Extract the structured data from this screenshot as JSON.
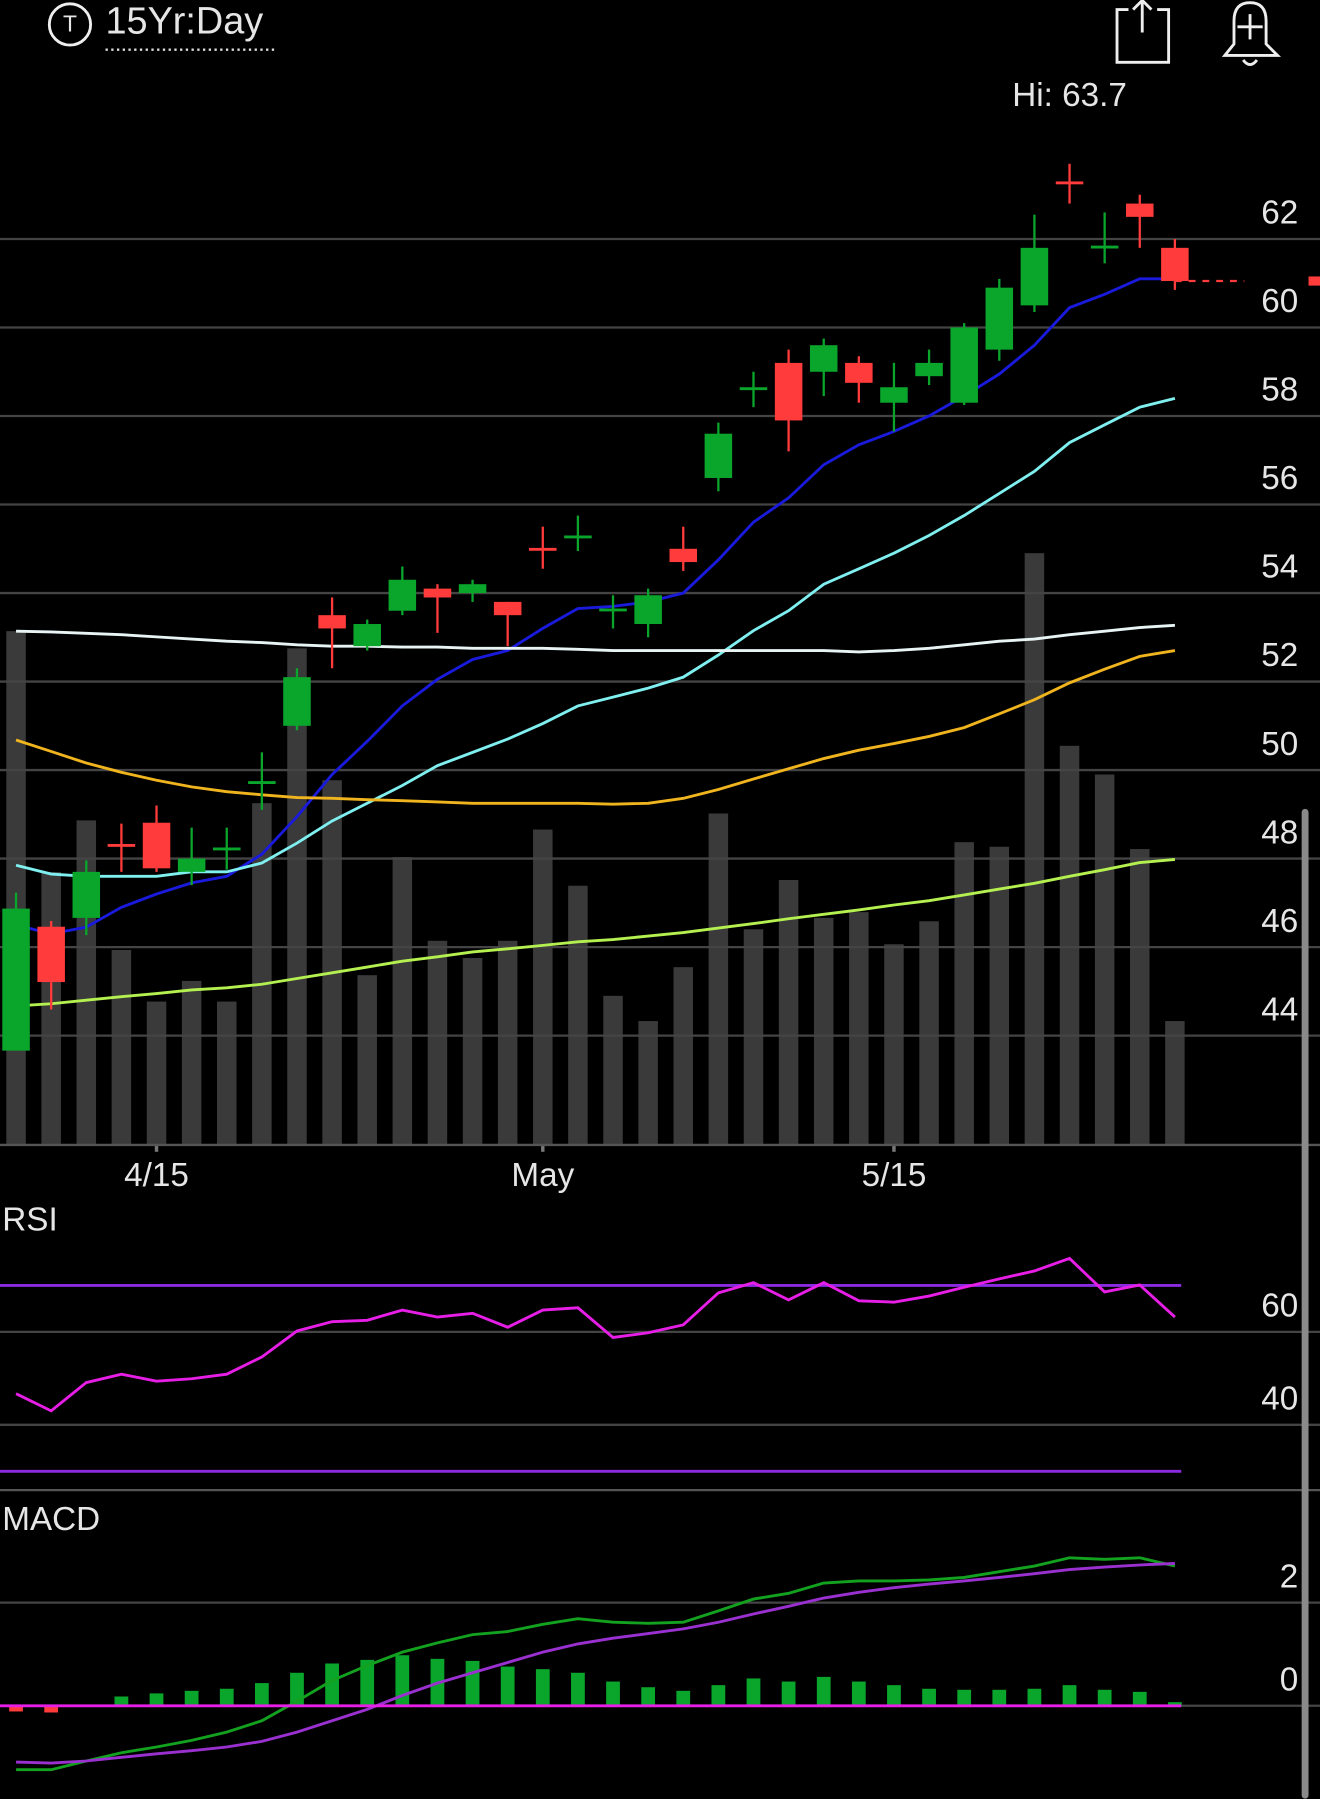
{
  "header": {
    "title": "15Yr:Day"
  },
  "chart_data": [
    {
      "type": "candlestick",
      "categories": [
        null,
        null,
        null,
        null,
        "4/15",
        null,
        null,
        null,
        null,
        null,
        null,
        null,
        null,
        null,
        null,
        "May",
        null,
        null,
        null,
        null,
        null,
        null,
        null,
        null,
        null,
        "5/15",
        null,
        null,
        null,
        null,
        null,
        null,
        null,
        null
      ],
      "open": [
        43.66,
        46.46,
        46.66,
        48.33,
        48.81,
        47.7,
        48.2,
        49.7,
        51.0,
        53.5,
        52.8,
        53.6,
        54.1,
        54.0,
        53.8,
        55.02,
        55.25,
        53.6,
        53.3,
        55.0,
        56.6,
        58.6,
        59.2,
        59.0,
        59.2,
        58.3,
        58.9,
        58.3,
        59.5,
        60.5,
        63.3,
        61.8,
        62.8,
        61.8
      ],
      "high": [
        47.23,
        46.59,
        47.96,
        48.79,
        49.2,
        48.7,
        48.7,
        50.4,
        52.3,
        53.9,
        53.4,
        54.6,
        54.2,
        54.3,
        53.8,
        55.5,
        55.75,
        53.95,
        54.1,
        55.5,
        57.85,
        59.0,
        59.5,
        59.75,
        59.35,
        59.2,
        59.5,
        60.1,
        61.1,
        62.55,
        63.7,
        62.6,
        63.0,
        62.0
      ],
      "low": [
        43.66,
        44.59,
        46.27,
        47.7,
        47.7,
        47.4,
        47.75,
        49.1,
        50.9,
        52.3,
        52.7,
        53.5,
        53.1,
        53.8,
        52.8,
        54.55,
        54.95,
        53.2,
        53.0,
        54.5,
        56.3,
        58.2,
        57.2,
        58.45,
        58.3,
        57.65,
        58.7,
        58.25,
        59.25,
        60.35,
        62.8,
        61.45,
        61.8,
        60.85
      ],
      "close": [
        46.87,
        45.21,
        47.7,
        48.29,
        47.78,
        48.0,
        48.25,
        49.75,
        52.1,
        53.2,
        53.3,
        54.3,
        53.9,
        54.2,
        53.5,
        55.0,
        55.3,
        53.65,
        53.95,
        54.7,
        57.6,
        58.65,
        57.9,
        59.6,
        58.75,
        58.65,
        59.2,
        60.0,
        60.9,
        61.8,
        63.25,
        61.85,
        62.5,
        61.05
      ],
      "volume": [
        448,
        238,
        283,
        170,
        125,
        143,
        125,
        298,
        433,
        318,
        148,
        251,
        178,
        163,
        178,
        275,
        226,
        130,
        108,
        155,
        289,
        188,
        231,
        198,
        203,
        175,
        195,
        264,
        260,
        516,
        348,
        323,
        258,
        108
      ],
      "vlim": [
        0,
        898
      ],
      "volume_color": "#3a3a3a",
      "up_color": "#0aa62c",
      "down_color": "#ff3b3b",
      "overlays": [
        {
          "color": "#1a1adc",
          "values": [
            46.5,
            46.3,
            46.45,
            46.9,
            47.2,
            47.45,
            47.6,
            48.1,
            48.95,
            49.9,
            50.65,
            51.45,
            52.05,
            52.5,
            52.7,
            53.2,
            53.65,
            53.7,
            53.8,
            54.0,
            54.75,
            55.6,
            56.15,
            56.9,
            57.35,
            57.65,
            58.0,
            58.45,
            58.95,
            59.6,
            60.45,
            60.75,
            61.1,
            61.1
          ]
        },
        {
          "color": "#7fefef",
          "values": [
            47.85,
            47.65,
            47.6,
            47.6,
            47.6,
            47.7,
            47.7,
            47.9,
            48.35,
            48.85,
            49.25,
            49.65,
            50.1,
            50.4,
            50.7,
            51.05,
            51.45,
            51.65,
            51.85,
            52.1,
            52.6,
            53.15,
            53.6,
            54.2,
            54.55,
            54.9,
            55.3,
            55.75,
            56.25,
            56.75,
            57.4,
            57.8,
            58.2,
            58.4
          ]
        },
        {
          "color": "#e8f4f4",
          "values": [
            53.14,
            53.12,
            53.09,
            53.06,
            53.01,
            52.96,
            52.91,
            52.88,
            52.83,
            52.8,
            52.8,
            52.78,
            52.78,
            52.75,
            52.75,
            52.75,
            52.73,
            52.7,
            52.7,
            52.7,
            52.7,
            52.7,
            52.7,
            52.7,
            52.67,
            52.7,
            52.75,
            52.83,
            52.91,
            52.96,
            53.06,
            53.14,
            53.22,
            53.27
          ]
        },
        {
          "color": "#f0b41e",
          "values": [
            50.68,
            50.42,
            50.16,
            49.95,
            49.77,
            49.62,
            49.51,
            49.44,
            49.38,
            49.36,
            49.33,
            49.31,
            49.28,
            49.25,
            49.25,
            49.25,
            49.25,
            49.23,
            49.25,
            49.36,
            49.56,
            49.8,
            50.03,
            50.26,
            50.45,
            50.6,
            50.76,
            50.96,
            51.27,
            51.59,
            51.97,
            52.28,
            52.57,
            52.7
          ]
        },
        {
          "color": "#b4f050",
          "values": [
            44.67,
            44.72,
            44.8,
            44.88,
            44.95,
            45.03,
            45.08,
            45.16,
            45.29,
            45.42,
            45.55,
            45.68,
            45.78,
            45.89,
            45.96,
            46.04,
            46.12,
            46.17,
            46.25,
            46.33,
            46.43,
            46.53,
            46.64,
            46.74,
            46.84,
            46.95,
            47.05,
            47.18,
            47.31,
            47.44,
            47.6,
            47.75,
            47.91,
            47.98
          ]
        }
      ],
      "high_label": "Hi: 63.7",
      "ylim": [
        41.53,
        64.8
      ],
      "yticks": [
        44,
        46,
        48,
        50,
        52,
        54,
        56,
        58,
        60,
        62
      ],
      "grid": true
    },
    {
      "type": "line",
      "title": "RSI",
      "series": [
        {
          "color": "#e61ee6",
          "values": [
            46.7,
            43.0,
            49.1,
            50.9,
            49.4,
            49.9,
            50.9,
            54.6,
            60.2,
            62.2,
            62.5,
            64.7,
            63.2,
            64.0,
            61.0,
            64.7,
            65.2,
            58.8,
            59.8,
            61.5,
            68.4,
            70.6,
            66.9,
            70.6,
            66.7,
            66.4,
            67.7,
            69.6,
            71.4,
            73.1,
            75.8,
            68.6,
            70.1,
            63.2
          ]
        }
      ],
      "levels": [
        70,
        30
      ],
      "level_color": "#8a2be2",
      "ylim": [
        25.7,
        87.4
      ],
      "yticks": [
        40,
        60
      ],
      "grid": true
    },
    {
      "type": "macd",
      "title": "MACD",
      "series": [
        {
          "color": "#13a21f",
          "values": [
            -1.24,
            -1.24,
            -1.07,
            -0.91,
            -0.8,
            -0.67,
            -0.51,
            -0.29,
            0.09,
            0.49,
            0.78,
            1.04,
            1.22,
            1.38,
            1.44,
            1.58,
            1.69,
            1.62,
            1.6,
            1.62,
            1.84,
            2.07,
            2.18,
            2.38,
            2.42,
            2.42,
            2.44,
            2.49,
            2.6,
            2.71,
            2.87,
            2.84,
            2.87,
            2.71
          ]
        },
        {
          "color": "#9a30d0",
          "values": [
            -1.09,
            -1.11,
            -1.07,
            -1.0,
            -0.93,
            -0.87,
            -0.8,
            -0.69,
            -0.51,
            -0.29,
            -0.07,
            0.2,
            0.44,
            0.64,
            0.84,
            1.04,
            1.2,
            1.31,
            1.4,
            1.49,
            1.62,
            1.78,
            1.93,
            2.09,
            2.2,
            2.29,
            2.36,
            2.42,
            2.49,
            2.56,
            2.64,
            2.69,
            2.73,
            2.76
          ]
        }
      ],
      "histogram": [
        -0.11,
        -0.13,
        0.0,
        0.18,
        0.24,
        0.29,
        0.33,
        0.44,
        0.64,
        0.82,
        0.89,
        0.98,
        0.91,
        0.87,
        0.76,
        0.71,
        0.64,
        0.47,
        0.36,
        0.29,
        0.4,
        0.53,
        0.47,
        0.56,
        0.47,
        0.4,
        0.33,
        0.31,
        0.31,
        0.33,
        0.4,
        0.31,
        0.27,
        0.07
      ],
      "up_color": "#0aa62c",
      "down_color": "#ff3b3b",
      "levels": [
        0
      ],
      "level_color": "#e61ee6",
      "ylim": [
        -1.8,
        3.27
      ],
      "yticks": [
        0,
        2
      ],
      "grid": true
    }
  ]
}
